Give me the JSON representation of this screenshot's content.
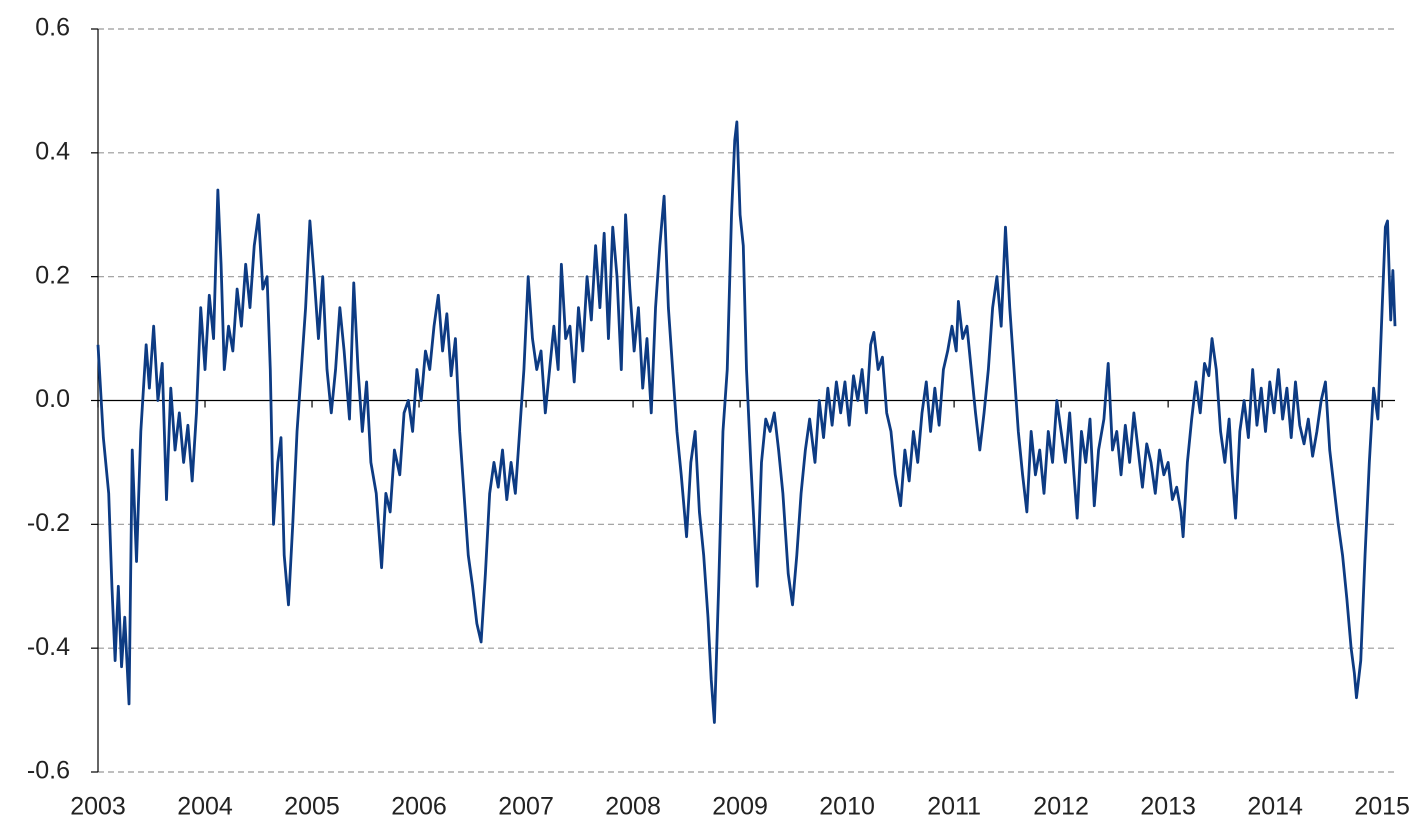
{
  "chart_data": {
    "type": "line",
    "color": "#0d3b83",
    "xlim": [
      2003,
      2015.12
    ],
    "xticks": [
      2003,
      2004,
      2005,
      2006,
      2007,
      2008,
      2009,
      2010,
      2011,
      2012,
      2013,
      2014,
      2015
    ],
    "ylim": [
      -0.6,
      0.6
    ],
    "yticks": [
      -0.6,
      -0.4,
      -0.2,
      {
        "value": 0,
        "label": "0.0"
      },
      0.2,
      0.4,
      0.6
    ],
    "grid": true,
    "x": [
      2003.0,
      2003.05,
      2003.1,
      2003.13,
      2003.16,
      2003.19,
      2003.22,
      2003.25,
      2003.29,
      2003.32,
      2003.36,
      2003.4,
      2003.45,
      2003.48,
      2003.52,
      2003.56,
      2003.6,
      2003.64,
      2003.68,
      2003.72,
      2003.76,
      2003.8,
      2003.84,
      2003.88,
      2003.92,
      2003.96,
      2004.0,
      2004.04,
      2004.08,
      2004.12,
      2004.15,
      2004.18,
      2004.22,
      2004.26,
      2004.3,
      2004.34,
      2004.38,
      2004.42,
      2004.46,
      2004.5,
      2004.54,
      2004.58,
      2004.61,
      2004.64,
      2004.68,
      2004.71,
      2004.74,
      2004.78,
      2004.82,
      2004.86,
      2004.9,
      2004.94,
      2004.98,
      2005.02,
      2005.06,
      2005.1,
      2005.14,
      2005.18,
      2005.22,
      2005.26,
      2005.3,
      2005.35,
      2005.39,
      2005.43,
      2005.47,
      2005.51,
      2005.55,
      2005.6,
      2005.65,
      2005.69,
      2005.73,
      2005.77,
      2005.82,
      2005.86,
      2005.9,
      2005.94,
      2005.98,
      2006.02,
      2006.06,
      2006.1,
      2006.14,
      2006.18,
      2006.22,
      2006.26,
      2006.3,
      2006.34,
      2006.38,
      2006.42,
      2006.46,
      2006.5,
      2006.54,
      2006.58,
      2006.62,
      2006.66,
      2006.7,
      2006.74,
      2006.78,
      2006.82,
      2006.86,
      2006.9,
      2006.94,
      2006.98,
      2007.02,
      2007.06,
      2007.1,
      2007.14,
      2007.18,
      2007.22,
      2007.26,
      2007.3,
      2007.33,
      2007.37,
      2007.41,
      2007.45,
      2007.49,
      2007.53,
      2007.57,
      2007.61,
      2007.65,
      2007.69,
      2007.73,
      2007.77,
      2007.81,
      2007.85,
      2007.89,
      2007.93,
      2007.97,
      2008.01,
      2008.05,
      2008.09,
      2008.13,
      2008.17,
      2008.21,
      2008.25,
      2008.29,
      2008.33,
      2008.37,
      2008.41,
      2008.45,
      2008.5,
      2008.54,
      2008.58,
      2008.62,
      2008.66,
      2008.7,
      2008.73,
      2008.76,
      2008.8,
      2008.84,
      2008.88,
      2008.92,
      2008.95,
      2008.97,
      2009.0,
      2009.03,
      2009.06,
      2009.1,
      2009.13,
      2009.16,
      2009.2,
      2009.24,
      2009.28,
      2009.32,
      2009.36,
      2009.4,
      2009.45,
      2009.49,
      2009.53,
      2009.57,
      2009.61,
      2009.65,
      2009.7,
      2009.74,
      2009.78,
      2009.82,
      2009.86,
      2009.9,
      2009.94,
      2009.98,
      2010.02,
      2010.06,
      2010.1,
      2010.14,
      2010.18,
      2010.22,
      2010.25,
      2010.29,
      2010.33,
      2010.37,
      2010.41,
      2010.45,
      2010.5,
      2010.54,
      2010.58,
      2010.62,
      2010.66,
      2010.7,
      2010.74,
      2010.78,
      2010.82,
      2010.86,
      2010.9,
      2010.94,
      2010.98,
      2011.02,
      2011.04,
      2011.08,
      2011.12,
      2011.16,
      2011.2,
      2011.24,
      2011.28,
      2011.32,
      2011.36,
      2011.4,
      2011.44,
      2011.48,
      2011.52,
      2011.56,
      2011.6,
      2011.64,
      2011.68,
      2011.72,
      2011.76,
      2011.8,
      2011.84,
      2011.88,
      2011.92,
      2011.96,
      2012.0,
      2012.04,
      2012.08,
      2012.12,
      2012.15,
      2012.19,
      2012.23,
      2012.27,
      2012.31,
      2012.35,
      2012.4,
      2012.44,
      2012.48,
      2012.52,
      2012.56,
      2012.6,
      2012.64,
      2012.68,
      2012.72,
      2012.76,
      2012.8,
      2012.84,
      2012.88,
      2012.92,
      2012.96,
      2013.0,
      2013.04,
      2013.08,
      2013.12,
      2013.14,
      2013.18,
      2013.22,
      2013.26,
      2013.3,
      2013.34,
      2013.38,
      2013.41,
      2013.45,
      2013.49,
      2013.53,
      2013.57,
      2013.6,
      2013.63,
      2013.67,
      2013.71,
      2013.75,
      2013.79,
      2013.83,
      2013.87,
      2013.91,
      2013.95,
      2013.99,
      2014.03,
      2014.07,
      2014.11,
      2014.15,
      2014.19,
      2014.23,
      2014.27,
      2014.31,
      2014.35,
      2014.39,
      2014.43,
      2014.47,
      2014.51,
      2014.55,
      2014.59,
      2014.63,
      2014.67,
      2014.71,
      2014.74,
      2014.76,
      2014.8,
      2014.84,
      2014.88,
      2014.92,
      2014.96,
      2015.0,
      2015.03,
      2015.05,
      2015.08,
      2015.1,
      2015.12
    ],
    "values": [
      0.09,
      -0.06,
      -0.15,
      -0.3,
      -0.42,
      -0.3,
      -0.43,
      -0.35,
      -0.49,
      -0.08,
      -0.26,
      -0.05,
      0.09,
      0.02,
      0.12,
      0.0,
      0.06,
      -0.16,
      0.02,
      -0.08,
      -0.02,
      -0.1,
      -0.04,
      -0.13,
      -0.02,
      0.15,
      0.05,
      0.17,
      0.1,
      0.34,
      0.22,
      0.05,
      0.12,
      0.08,
      0.18,
      0.12,
      0.22,
      0.15,
      0.25,
      0.3,
      0.18,
      0.2,
      0.05,
      -0.2,
      -0.1,
      -0.06,
      -0.25,
      -0.33,
      -0.2,
      -0.05,
      0.05,
      0.15,
      0.29,
      0.2,
      0.1,
      0.2,
      0.05,
      -0.02,
      0.05,
      0.15,
      0.08,
      -0.03,
      0.19,
      0.05,
      -0.05,
      0.03,
      -0.1,
      -0.15,
      -0.27,
      -0.15,
      -0.18,
      -0.08,
      -0.12,
      -0.02,
      0.0,
      -0.05,
      0.05,
      0.0,
      0.08,
      0.05,
      0.12,
      0.17,
      0.08,
      0.14,
      0.04,
      0.1,
      -0.05,
      -0.15,
      -0.25,
      -0.3,
      -0.36,
      -0.39,
      -0.28,
      -0.15,
      -0.1,
      -0.14,
      -0.08,
      -0.16,
      -0.1,
      -0.15,
      -0.05,
      0.05,
      0.2,
      0.1,
      0.05,
      0.08,
      -0.02,
      0.05,
      0.12,
      0.05,
      0.22,
      0.1,
      0.12,
      0.03,
      0.15,
      0.08,
      0.2,
      0.13,
      0.25,
      0.15,
      0.27,
      0.1,
      0.28,
      0.2,
      0.05,
      0.3,
      0.18,
      0.08,
      0.15,
      0.02,
      0.1,
      -0.02,
      0.15,
      0.25,
      0.33,
      0.15,
      0.05,
      -0.05,
      -0.12,
      -0.22,
      -0.1,
      -0.05,
      -0.18,
      -0.25,
      -0.35,
      -0.45,
      -0.52,
      -0.3,
      -0.05,
      0.05,
      0.3,
      0.42,
      0.45,
      0.3,
      0.25,
      0.05,
      -0.1,
      -0.2,
      -0.3,
      -0.1,
      -0.03,
      -0.05,
      -0.02,
      -0.08,
      -0.15,
      -0.28,
      -0.33,
      -0.25,
      -0.15,
      -0.08,
      -0.03,
      -0.1,
      0.0,
      -0.06,
      0.02,
      -0.04,
      0.03,
      -0.02,
      0.03,
      -0.04,
      0.04,
      0.0,
      0.05,
      -0.02,
      0.09,
      0.11,
      0.05,
      0.07,
      -0.02,
      -0.05,
      -0.12,
      -0.17,
      -0.08,
      -0.13,
      -0.05,
      -0.1,
      -0.02,
      0.03,
      -0.05,
      0.02,
      -0.04,
      0.05,
      0.08,
      0.12,
      0.08,
      0.16,
      0.1,
      0.12,
      0.05,
      -0.02,
      -0.08,
      -0.02,
      0.05,
      0.15,
      0.2,
      0.12,
      0.28,
      0.15,
      0.05,
      -0.05,
      -0.12,
      -0.18,
      -0.05,
      -0.12,
      -0.08,
      -0.15,
      -0.05,
      -0.1,
      0.0,
      -0.05,
      -0.1,
      -0.02,
      -0.12,
      -0.19,
      -0.05,
      -0.1,
      -0.03,
      -0.17,
      -0.08,
      -0.03,
      0.06,
      -0.08,
      -0.05,
      -0.12,
      -0.04,
      -0.1,
      -0.02,
      -0.08,
      -0.14,
      -0.07,
      -0.1,
      -0.15,
      -0.08,
      -0.12,
      -0.1,
      -0.16,
      -0.14,
      -0.18,
      -0.22,
      -0.1,
      -0.03,
      0.03,
      -0.02,
      0.06,
      0.04,
      0.1,
      0.05,
      -0.05,
      -0.1,
      -0.03,
      -0.12,
      -0.19,
      -0.05,
      0.0,
      -0.06,
      0.05,
      -0.04,
      0.02,
      -0.05,
      0.03,
      -0.02,
      0.05,
      -0.03,
      0.02,
      -0.06,
      0.03,
      -0.04,
      -0.07,
      -0.03,
      -0.09,
      -0.05,
      0.0,
      0.03,
      -0.08,
      -0.14,
      -0.2,
      -0.25,
      -0.32,
      -0.4,
      -0.44,
      -0.48,
      -0.42,
      -0.25,
      -0.1,
      0.02,
      -0.03,
      0.15,
      0.28,
      0.29,
      0.13,
      0.21,
      0.12
    ]
  }
}
